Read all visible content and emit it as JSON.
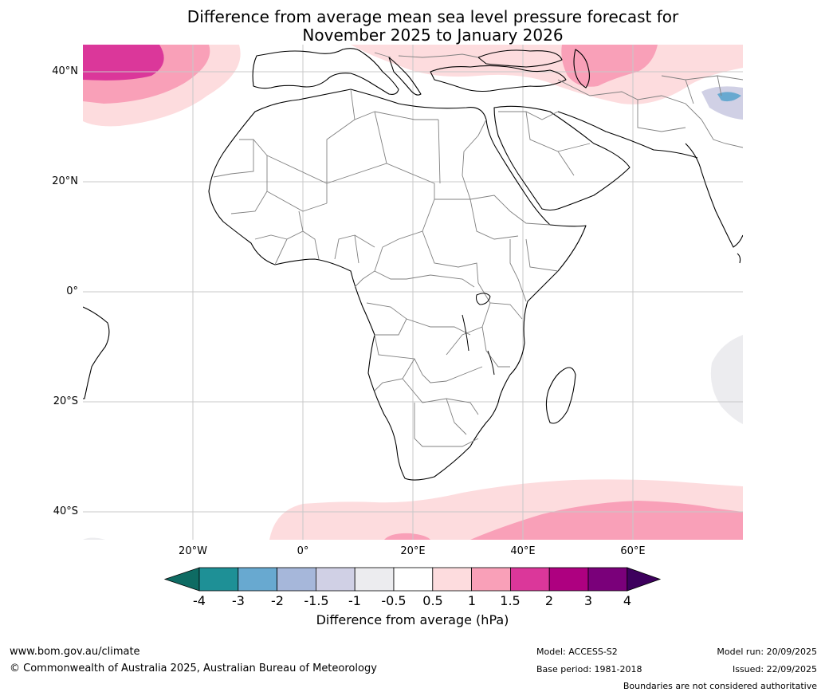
{
  "title": {
    "line1": "Difference from average mean sea level pressure forecast for",
    "line2": "November 2025 to January 2026"
  },
  "map": {
    "region": "Africa",
    "lat_labels": [
      "40°N",
      "20°N",
      "0°",
      "20°S",
      "40°S"
    ],
    "lon_labels": [
      "20°W",
      "0°",
      "20°E",
      "40°E",
      "60°E"
    ],
    "features": [
      "pressure-anomaly-contours",
      "coastlines",
      "country-borders",
      "graticule"
    ]
  },
  "colorbar": {
    "title": "Difference from average (hPa)",
    "ticks": [
      "-4",
      "-3",
      "-2",
      "-1.5",
      "-1",
      "-0.5",
      "0.5",
      "1",
      "1.5",
      "2",
      "3",
      "4"
    ],
    "colors": [
      "#0e6b63",
      "#1e9096",
      "#68a9d0",
      "#a6b7da",
      "#d0d0e5",
      "#ececef",
      "#ffffff",
      "#fddcde",
      "#f9a0b8",
      "#db379a",
      "#ae0080",
      "#7a007a",
      "#3d005d"
    ]
  },
  "footer": {
    "website": "www.bom.gov.au/climate",
    "copyright": "© Commonwealth of Australia 2025, Australian Bureau of Meteorology",
    "model": "Model: ACCESS-S2",
    "base_period": "Base period: 1981-2018",
    "model_run": "Model run: 20/09/2025",
    "issued": "Issued: 22/09/2025",
    "disclaimer": "Boundaries are not considered authoritative"
  }
}
